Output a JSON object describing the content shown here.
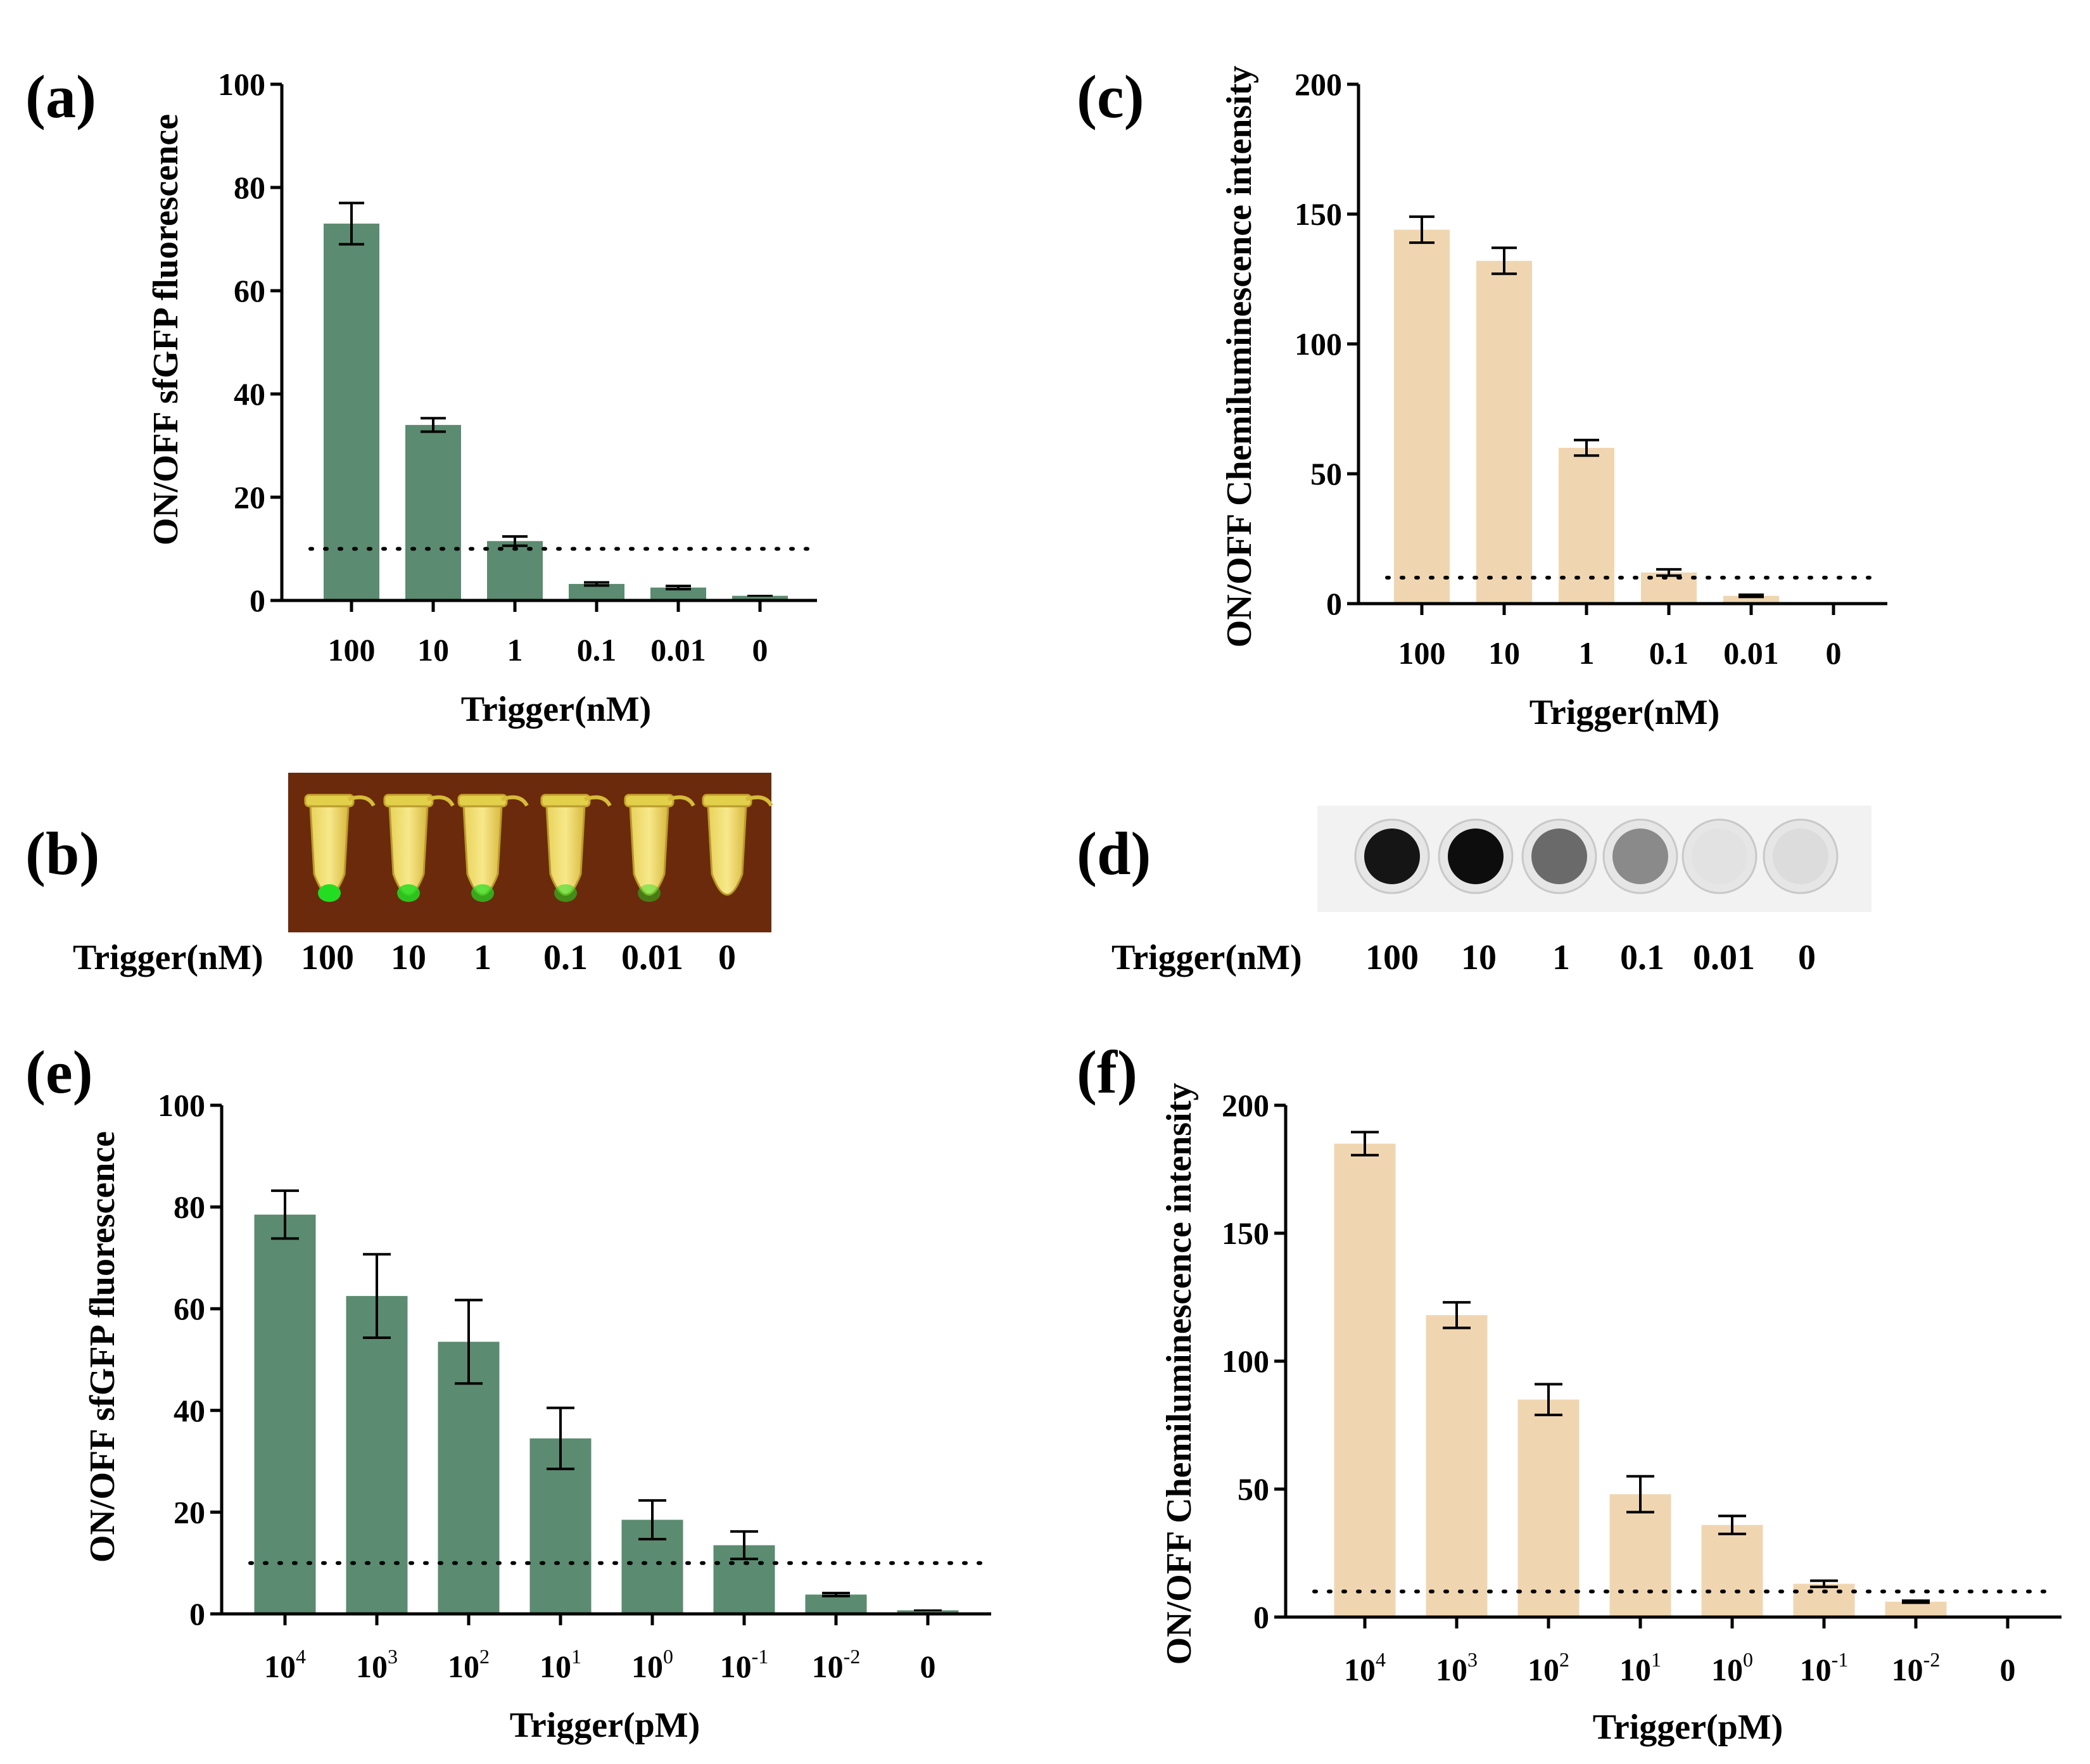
{
  "figure": {
    "panels": {
      "a": "(a)",
      "b": "(b)",
      "c": "(c)",
      "d": "(d)",
      "e": "(e)",
      "f": "(f)"
    },
    "photo_b": {
      "row_label": "Trigger(nM)",
      "concentrations": [
        "100",
        "10",
        "1",
        "0.1",
        "0.01",
        "0"
      ]
    },
    "photo_d": {
      "row_label": "Trigger(nM)",
      "concentrations": [
        "100",
        "10",
        "1",
        "0.1",
        "0.01",
        "0"
      ]
    },
    "colors": {
      "green_bar": "#5b8b70",
      "tan_bar": "#f0d6b0",
      "tube_background": "#6b2a0c",
      "tube_fluorescence": "#22dd22",
      "dot_background": "#f2f2f2"
    }
  },
  "chart_data": [
    {
      "id": "a",
      "type": "bar",
      "categories": [
        "100",
        "10",
        "1",
        "0.1",
        "0.01",
        "0"
      ],
      "values": [
        73.0,
        34.0,
        11.5,
        3.2,
        2.5,
        0.9
      ],
      "errors": [
        4.0,
        1.3,
        0.9,
        0.3,
        0.3,
        0.0
      ],
      "threshold": 10,
      "ylim": [
        0,
        100
      ],
      "yticks": [
        0,
        20,
        40,
        60,
        80,
        100
      ],
      "xlabel": "Trigger(nM)",
      "ylabel": "ON/OFF sfGFP fluorescence",
      "color": "#5b8b70"
    },
    {
      "id": "c",
      "type": "bar",
      "categories": [
        "100",
        "10",
        "1",
        "0.1",
        "0.01",
        "0"
      ],
      "values": [
        144,
        132,
        60,
        12,
        3,
        0
      ],
      "errors": [
        5,
        5,
        3,
        1.2,
        0.4,
        0
      ],
      "threshold": 10,
      "ylim": [
        0,
        200
      ],
      "yticks": [
        0,
        50,
        100,
        150,
        200
      ],
      "xlabel": "Trigger(nM)",
      "ylabel": "ON/OFF Chemiluminescence intensity",
      "color": "#f0d6b0"
    },
    {
      "id": "e",
      "type": "bar",
      "categories": [
        {
          "base": "10",
          "exp": "4"
        },
        {
          "base": "10",
          "exp": "3"
        },
        {
          "base": "10",
          "exp": "2"
        },
        {
          "base": "10",
          "exp": "1"
        },
        {
          "base": "10",
          "exp": "0"
        },
        {
          "base": "10",
          "exp": "-1"
        },
        {
          "base": "10",
          "exp": "-2"
        },
        {
          "base": "0",
          "exp": ""
        }
      ],
      "values": [
        78.5,
        62.5,
        53.5,
        34.5,
        18.5,
        13.5,
        3.8,
        0.7
      ],
      "errors": [
        4.7,
        8.2,
        8.2,
        6.0,
        3.8,
        2.7,
        0.3,
        0.0
      ],
      "threshold": 10,
      "ylim": [
        0,
        100
      ],
      "yticks": [
        0,
        20,
        40,
        60,
        80,
        100
      ],
      "xlabel": "Trigger(pM)",
      "ylabel": "ON/OFF sfGFP fluorescence",
      "color": "#5b8b70"
    },
    {
      "id": "f",
      "type": "bar",
      "categories": [
        {
          "base": "10",
          "exp": "4"
        },
        {
          "base": "10",
          "exp": "3"
        },
        {
          "base": "10",
          "exp": "2"
        },
        {
          "base": "10",
          "exp": "1"
        },
        {
          "base": "10",
          "exp": "0"
        },
        {
          "base": "10",
          "exp": "-1"
        },
        {
          "base": "10",
          "exp": "-2"
        },
        {
          "base": "0",
          "exp": ""
        }
      ],
      "values": [
        185,
        118,
        85,
        48,
        36,
        13,
        6,
        0
      ],
      "errors": [
        4.5,
        5,
        6,
        7,
        3.5,
        1.2,
        0.4,
        0
      ],
      "threshold": 10,
      "ylim": [
        0,
        200
      ],
      "yticks": [
        0,
        50,
        100,
        150,
        200
      ],
      "xlabel": "Trigger(pM)",
      "ylabel": "ON/OFF Chemiluminescence intensity",
      "color": "#f0d6b0"
    }
  ]
}
